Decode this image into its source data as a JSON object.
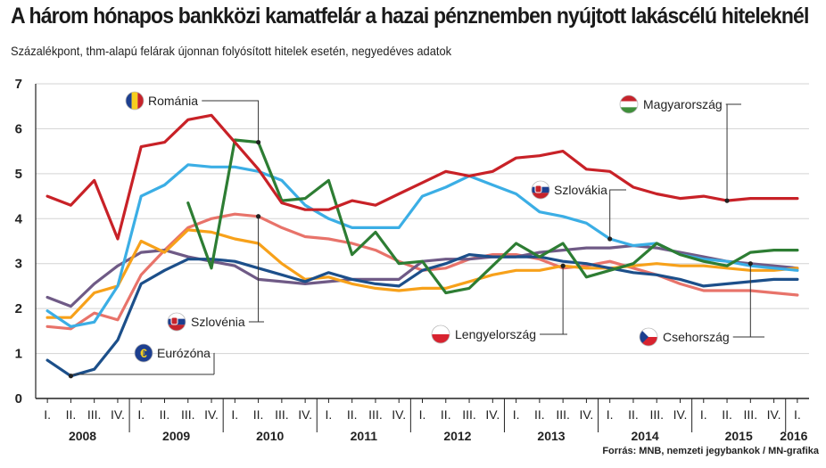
{
  "header": {
    "title": "A három hónapos bankközi kamatfelár a hazai pénznemben nyújtott lakáscélú hiteleknél",
    "subtitle": "Százalékpont, thm-alapú felárak újonnan folyósított hitelek esetén, negyedéves adatok",
    "source": "Forrás: MNB, nemzeti jegybankok / MN-grafika"
  },
  "chart_data": {
    "type": "line",
    "title": "A három hónapos bankközi kamatfelár a hazai pénznemben nyújtott lakáscélú hiteleknél",
    "subtitle": "Százalékpont, thm-alapú felárak újonnan folyósított hitelek esetén, negyedéves adatok",
    "ylim": [
      0,
      7
    ],
    "yticks": [
      "0",
      "1",
      "2",
      "3",
      "4",
      "5",
      "6",
      "7"
    ],
    "grid": true,
    "x": [
      "I.",
      "II.",
      "III.",
      "IV.",
      "I.",
      "II.",
      "III.",
      "IV.",
      "I.",
      "II.",
      "III.",
      "IV.",
      "I.",
      "II.",
      "III.",
      "IV.",
      "I.",
      "II.",
      "III.",
      "IV.",
      "I.",
      "II.",
      "III.",
      "IV.",
      "I.",
      "II.",
      "III.",
      "IV.",
      "I.",
      "II.",
      "III.",
      "IV.",
      "I."
    ],
    "years": [
      {
        "label": "2008",
        "start": 0
      },
      {
        "label": "2009",
        "start": 4
      },
      {
        "label": "2010",
        "start": 8
      },
      {
        "label": "2011",
        "start": 12
      },
      {
        "label": "2012",
        "start": 16
      },
      {
        "label": "2013",
        "start": 20
      },
      {
        "label": "2014",
        "start": 24
      },
      {
        "label": "2015",
        "start": 28
      },
      {
        "label": "2016",
        "start": 32
      }
    ],
    "series": [
      {
        "name": "Magyarország",
        "color": "#c82127",
        "values": [
          4.5,
          4.3,
          4.85,
          3.55,
          5.6,
          5.7,
          6.2,
          6.3,
          5.7,
          5.1,
          4.35,
          4.2,
          4.2,
          4.4,
          4.3,
          4.55,
          4.8,
          5.05,
          4.95,
          5.05,
          5.35,
          5.4,
          5.5,
          5.1,
          5.05,
          4.7,
          4.55,
          4.45,
          4.5,
          4.4,
          4.45,
          4.45,
          4.45
        ]
      },
      {
        "name": "Szlovákia",
        "color": "#3baee5",
        "values": [
          1.95,
          1.6,
          1.7,
          2.5,
          4.5,
          4.75,
          5.2,
          5.15,
          5.15,
          5.05,
          4.85,
          4.3,
          4.0,
          3.8,
          3.8,
          3.8,
          4.5,
          4.7,
          4.95,
          4.75,
          4.55,
          4.15,
          4.05,
          3.9,
          3.55,
          3.4,
          3.45,
          3.2,
          3.1,
          3.05,
          2.95,
          2.9,
          2.85
        ]
      },
      {
        "name": "Románia",
        "color": "#2d7d33",
        "values": [
          null,
          null,
          null,
          null,
          null,
          null,
          4.35,
          2.9,
          5.75,
          5.7,
          4.4,
          4.45,
          4.85,
          3.2,
          3.7,
          3.0,
          3.05,
          2.35,
          2.45,
          2.95,
          3.45,
          3.15,
          3.45,
          2.7,
          2.85,
          3.0,
          3.45,
          3.2,
          3.05,
          2.95,
          3.25,
          3.3,
          3.3
        ]
      },
      {
        "name": "Szlovénia",
        "color": "#e8736a",
        "values": [
          1.6,
          1.55,
          1.9,
          1.75,
          2.75,
          3.3,
          3.8,
          4.0,
          4.1,
          4.05,
          3.8,
          3.6,
          3.55,
          3.45,
          3.3,
          3.05,
          2.85,
          2.9,
          3.1,
          3.2,
          3.2,
          3.1,
          2.9,
          2.95,
          3.05,
          2.9,
          2.75,
          2.55,
          2.4,
          2.4,
          2.4,
          2.35,
          2.3
        ]
      },
      {
        "name": "Lengyelország",
        "color": "#f7a11a",
        "values": [
          1.8,
          1.8,
          2.35,
          2.5,
          3.5,
          3.25,
          3.75,
          3.7,
          3.55,
          3.45,
          3.0,
          2.65,
          2.7,
          2.55,
          2.45,
          2.4,
          2.45,
          2.45,
          2.6,
          2.75,
          2.85,
          2.85,
          2.95,
          2.9,
          2.9,
          2.95,
          3.0,
          2.95,
          2.95,
          2.9,
          2.85,
          2.85,
          2.9
        ]
      },
      {
        "name": "Eurózóna",
        "color": "#1c4f8a",
        "values": [
          0.85,
          0.5,
          0.65,
          1.3,
          2.55,
          2.85,
          3.1,
          3.1,
          3.05,
          2.9,
          2.75,
          2.6,
          2.8,
          2.65,
          2.55,
          2.5,
          2.85,
          3.0,
          3.2,
          3.15,
          3.15,
          3.15,
          3.05,
          3.0,
          2.9,
          2.8,
          2.75,
          2.65,
          2.5,
          2.55,
          2.6,
          2.65,
          2.65
        ]
      },
      {
        "name": "Csehország",
        "color": "#6f5a86",
        "values": [
          2.25,
          2.05,
          2.55,
          2.95,
          3.25,
          3.3,
          3.15,
          3.05,
          2.95,
          2.65,
          2.6,
          2.55,
          2.6,
          2.65,
          2.65,
          2.65,
          3.05,
          3.1,
          3.1,
          3.15,
          3.15,
          3.25,
          3.3,
          3.35,
          3.35,
          3.4,
          3.35,
          3.25,
          3.15,
          3.05,
          3.0,
          2.95,
          2.9
        ]
      }
    ],
    "callouts": [
      {
        "series": "Románia",
        "label": "Románia",
        "flag": "romania"
      },
      {
        "series": "Magyarország",
        "label": "Magyarország",
        "flag": "hungary"
      },
      {
        "series": "Szlovákia",
        "label": "Szlovákia",
        "flag": "slovakia"
      },
      {
        "series": "Szlovénia",
        "label": "Szlovénia",
        "flag": "slovenia"
      },
      {
        "series": "Eurózóna",
        "label": "Eurózóna",
        "flag": "euro"
      },
      {
        "series": "Lengyelország",
        "label": "Lengyelország",
        "flag": "poland"
      },
      {
        "series": "Csehország",
        "label": "Csehország",
        "flag": "czech"
      }
    ]
  }
}
